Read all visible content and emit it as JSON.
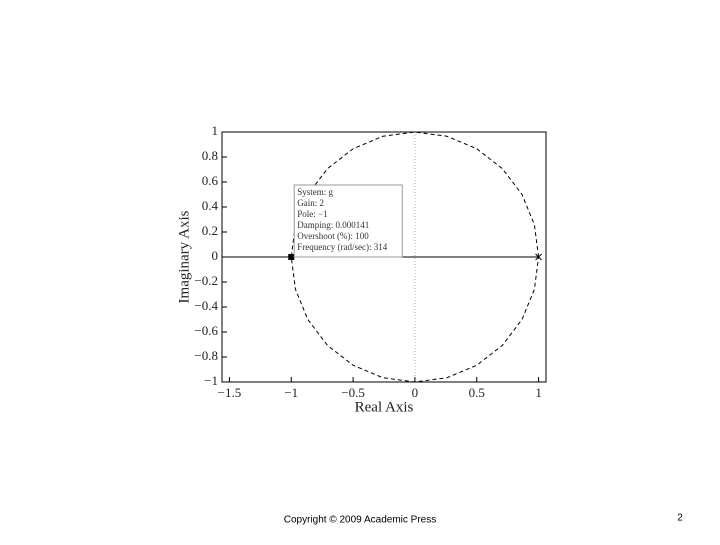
{
  "chart_data": {
    "type": "root-locus",
    "xlabel": "Real Axis",
    "ylabel": "Imaginary Axis",
    "xlim": [
      -1.56,
      1.06
    ],
    "ylim": [
      -1,
      1
    ],
    "xticks": [
      {
        "value": -1.5,
        "label": "−1.5"
      },
      {
        "value": -1,
        "label": "−1"
      },
      {
        "value": -0.5,
        "label": "−0.5"
      },
      0,
      0.5,
      1
    ],
    "yticks": [
      {
        "value": -1,
        "label": "−1"
      },
      {
        "value": -0.8,
        "label": "−0.8"
      },
      {
        "value": -0.6,
        "label": "−0.6"
      },
      {
        "value": -0.4,
        "label": "−0.4"
      },
      {
        "value": -0.2,
        "label": "−0.2"
      },
      0,
      0.2,
      0.4,
      0.6,
      0.8,
      1
    ],
    "zero_line": true,
    "series": [
      {
        "style": "solid",
        "color": "#000000",
        "x": [
          -1.56,
          1
        ],
        "y": [
          0,
          0
        ]
      },
      {
        "style": "dashed",
        "color": "#000000",
        "x": [
          1,
          0.966,
          0.866,
          0.707,
          0.5,
          0.259,
          0,
          -0.259,
          -0.5,
          -0.707,
          -0.866,
          -0.966,
          -1,
          -0.966,
          -0.866,
          -0.707,
          -0.5,
          -0.259,
          0,
          0.259,
          0.5,
          0.707,
          0.866,
          0.966,
          1
        ],
        "y": [
          0,
          0.259,
          0.5,
          0.707,
          0.866,
          0.966,
          1,
          0.966,
          0.866,
          0.707,
          0.5,
          0.259,
          0,
          -0.259,
          -0.5,
          -0.707,
          -0.866,
          -0.966,
          -1,
          -0.966,
          -0.866,
          -0.707,
          -0.5,
          -0.259,
          0
        ]
      }
    ],
    "poles": {
      "x": [
        1
      ],
      "y": [
        0
      ]
    },
    "selected": {
      "x": -1,
      "y": 0
    },
    "datatip": [
      "System: g",
      "Gain: 2",
      "Pole: −1",
      "Damping: 0.000141",
      "Overshoot (%): 100",
      "Frequency (rad/sec): 314"
    ]
  },
  "footer": {
    "copyright": "Copyright © 2009 Academic Press",
    "page": "2"
  }
}
